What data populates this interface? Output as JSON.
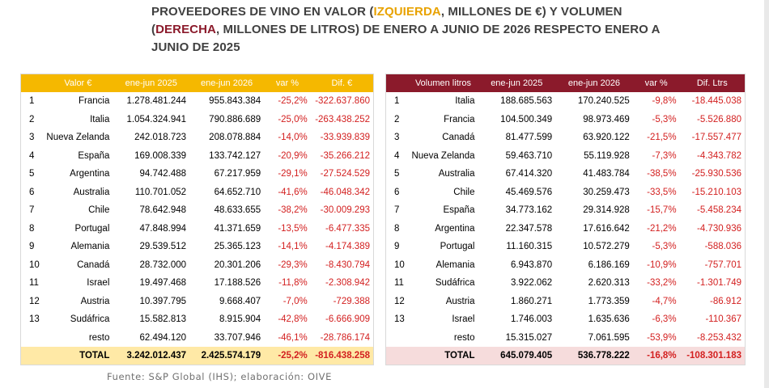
{
  "title": {
    "part1": "PROVEEDORES DE VINO EN VALOR (",
    "left_word": "IZQUIERDA",
    "part2": ", MILLONES DE €) Y VOLUMEN (",
    "right_word": "DERECHA",
    "part3": ", MILLONES DE LITROS) DE ENERO A JUNIO DE 2026 RESPECTO ENERO A JUNIO DE 2025"
  },
  "colors": {
    "left_header": "#f5b800",
    "left_total": "#ffe9a6",
    "right_header": "#8b1a2b",
    "right_total": "#f6dcdc",
    "negative": "#d32020"
  },
  "left_table": {
    "headers": [
      "Valor €",
      "ene-jun 2025",
      "ene-jun 2026",
      "var %",
      "Dif. €"
    ],
    "rows": [
      {
        "rank": "1",
        "name": "Francia",
        "v2025": "1.278.481.244",
        "v2026": "955.843.384",
        "var": "-25,2%",
        "dif": "-322.637.860"
      },
      {
        "rank": "2",
        "name": "Italia",
        "v2025": "1.054.324.941",
        "v2026": "790.886.689",
        "var": "-25,0%",
        "dif": "-263.438.252"
      },
      {
        "rank": "3",
        "name": "Nueva Zelanda",
        "v2025": "242.018.723",
        "v2026": "208.078.884",
        "var": "-14,0%",
        "dif": "-33.939.839"
      },
      {
        "rank": "4",
        "name": "España",
        "v2025": "169.008.339",
        "v2026": "133.742.127",
        "var": "-20,9%",
        "dif": "-35.266.212"
      },
      {
        "rank": "5",
        "name": "Argentina",
        "v2025": "94.742.488",
        "v2026": "67.217.959",
        "var": "-29,1%",
        "dif": "-27.524.529"
      },
      {
        "rank": "6",
        "name": "Australia",
        "v2025": "110.701.052",
        "v2026": "64.652.710",
        "var": "-41,6%",
        "dif": "-46.048.342"
      },
      {
        "rank": "7",
        "name": "Chile",
        "v2025": "78.642.948",
        "v2026": "48.633.655",
        "var": "-38,2%",
        "dif": "-30.009.293"
      },
      {
        "rank": "8",
        "name": "Portugal",
        "v2025": "47.848.994",
        "v2026": "41.371.659",
        "var": "-13,5%",
        "dif": "-6.477.335"
      },
      {
        "rank": "9",
        "name": "Alemania",
        "v2025": "29.539.512",
        "v2026": "25.365.123",
        "var": "-14,1%",
        "dif": "-4.174.389"
      },
      {
        "rank": "10",
        "name": "Canadá",
        "v2025": "28.732.000",
        "v2026": "20.301.206",
        "var": "-29,3%",
        "dif": "-8.430.794"
      },
      {
        "rank": "11",
        "name": "Israel",
        "v2025": "19.497.468",
        "v2026": "17.188.526",
        "var": "-11,8%",
        "dif": "-2.308.942"
      },
      {
        "rank": "12",
        "name": "Austria",
        "v2025": "10.397.795",
        "v2026": "9.668.407",
        "var": "-7,0%",
        "dif": "-729.388"
      },
      {
        "rank": "13",
        "name": "Sudáfrica",
        "v2025": "15.582.813",
        "v2026": "8.915.904",
        "var": "-42,8%",
        "dif": "-6.666.909"
      },
      {
        "rank": "",
        "name": "resto",
        "v2025": "62.494.120",
        "v2026": "33.707.946",
        "var": "-46,1%",
        "dif": "-28.786.174"
      }
    ],
    "total": {
      "name": "TOTAL",
      "v2025": "3.242.012.437",
      "v2026": "2.425.574.179",
      "var": "-25,2%",
      "dif": "-816.438.258"
    }
  },
  "right_table": {
    "headers": [
      "Volumen litros",
      "ene-jun 2025",
      "ene-jun 2026",
      "var %",
      "Dif. Ltrs"
    ],
    "rows": [
      {
        "rank": "1",
        "name": "Italia",
        "v2025": "188.685.563",
        "v2026": "170.240.525",
        "var": "-9,8%",
        "dif": "-18.445.038"
      },
      {
        "rank": "2",
        "name": "Francia",
        "v2025": "104.500.349",
        "v2026": "98.973.469",
        "var": "-5,3%",
        "dif": "-5.526.880"
      },
      {
        "rank": "3",
        "name": "Canadá",
        "v2025": "81.477.599",
        "v2026": "63.920.122",
        "var": "-21,5%",
        "dif": "-17.557.477"
      },
      {
        "rank": "4",
        "name": "Nueva Zelanda",
        "v2025": "59.463.710",
        "v2026": "55.119.928",
        "var": "-7,3%",
        "dif": "-4.343.782"
      },
      {
        "rank": "5",
        "name": "Australia",
        "v2025": "67.414.320",
        "v2026": "41.483.784",
        "var": "-38,5%",
        "dif": "-25.930.536"
      },
      {
        "rank": "6",
        "name": "Chile",
        "v2025": "45.469.576",
        "v2026": "30.259.473",
        "var": "-33,5%",
        "dif": "-15.210.103"
      },
      {
        "rank": "7",
        "name": "España",
        "v2025": "34.773.162",
        "v2026": "29.314.928",
        "var": "-15,7%",
        "dif": "-5.458.234"
      },
      {
        "rank": "8",
        "name": "Argentina",
        "v2025": "22.347.578",
        "v2026": "17.616.642",
        "var": "-21,2%",
        "dif": "-4.730.936"
      },
      {
        "rank": "9",
        "name": "Portugal",
        "v2025": "11.160.315",
        "v2026": "10.572.279",
        "var": "-5,3%",
        "dif": "-588.036"
      },
      {
        "rank": "10",
        "name": "Alemania",
        "v2025": "6.943.870",
        "v2026": "6.186.169",
        "var": "-10,9%",
        "dif": "-757.701"
      },
      {
        "rank": "11",
        "name": "Sudáfrica",
        "v2025": "3.922.062",
        "v2026": "2.620.313",
        "var": "-33,2%",
        "dif": "-1.301.749"
      },
      {
        "rank": "12",
        "name": "Austria",
        "v2025": "1.860.271",
        "v2026": "1.773.359",
        "var": "-4,7%",
        "dif": "-86.912"
      },
      {
        "rank": "13",
        "name": "Israel",
        "v2025": "1.746.003",
        "v2026": "1.635.636",
        "var": "-6,3%",
        "dif": "-110.367"
      },
      {
        "rank": "",
        "name": "resto",
        "v2025": "15.315.027",
        "v2026": "7.061.595",
        "var": "-53,9%",
        "dif": "-8.253.432"
      }
    ],
    "total": {
      "name": "TOTAL",
      "v2025": "645.079.405",
      "v2026": "536.778.222",
      "var": "-16,8%",
      "dif": "-108.301.183"
    }
  },
  "source": "Fuente: S&P Global (IHS); elaboración: OIVE"
}
